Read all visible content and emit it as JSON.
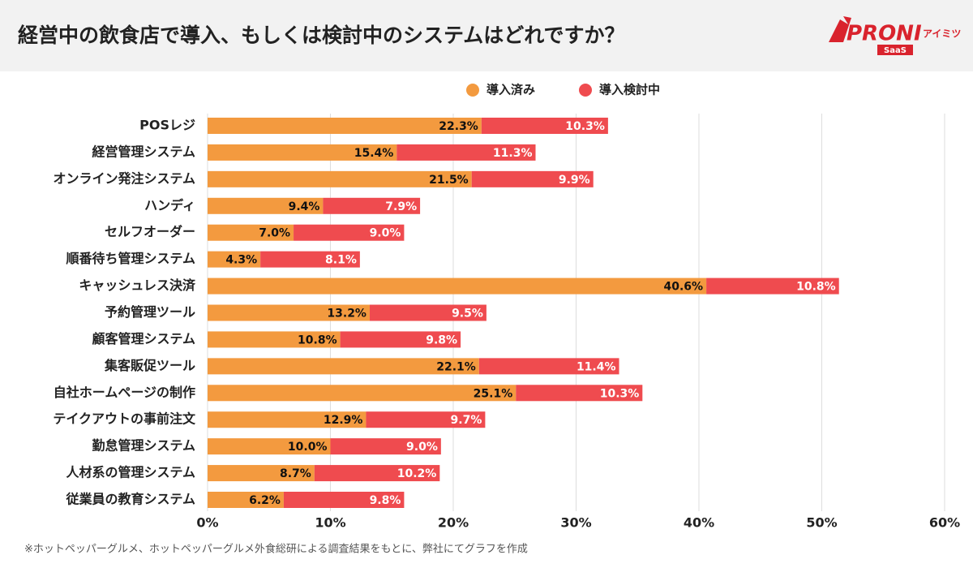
{
  "chart_data": {
    "type": "bar",
    "orientation": "horizontal",
    "stacked": true,
    "title": "経営中の飲食店で導入、もしくは検討中のシステムはどれですか？",
    "note": "※ホットペッパーグルメ、ホットペッパーグルメ外食総研による調査結果をもとに、弊社にてグラフを作成",
    "categories": [
      "POSレジ",
      "経営管理システム",
      "オンライン発注システム",
      "ハンディ",
      "セルフオーダー",
      "順番待ち管理システム",
      "キャッシュレス決済",
      "予約管理ツール",
      "顧客管理システム",
      "集客販促ツール",
      "自社ホームページの制作",
      "テイクアウトの事前注文",
      "勤怠管理システム",
      "人材系の管理システム",
      "従業員の教育システム"
    ],
    "series": [
      {
        "name": "導入済み",
        "color": "#f39a3f",
        "label_color": "#111111",
        "values": [
          22.3,
          15.4,
          21.5,
          9.4,
          7.0,
          4.3,
          40.6,
          13.2,
          10.8,
          22.1,
          25.1,
          12.9,
          10.0,
          8.7,
          6.2
        ],
        "value_labels": [
          "22.3%",
          "15.4%",
          "21.5%",
          "9.4%",
          "7.0%",
          "4.3%",
          "40.6%",
          "13.2%",
          "10.8%",
          "22.1%",
          "25.1%",
          "12.9%",
          "10.0%",
          "8.7%",
          "6.2%"
        ]
      },
      {
        "name": "導入検討中",
        "color": "#ef4b4f",
        "label_color": "#ffffff",
        "values": [
          10.3,
          11.3,
          9.9,
          7.9,
          9.0,
          8.1,
          10.8,
          9.5,
          9.8,
          11.4,
          10.3,
          9.7,
          9.0,
          10.2,
          9.8
        ],
        "value_labels": [
          "10.3%",
          "11.3%",
          "9.9%",
          "7.9%",
          "9.0%",
          "8.1%",
          "10.8%",
          "9.5%",
          "9.8%",
          "11.4%",
          "10.3%",
          "9.7%",
          "9.0%",
          "10.2%",
          "9.8%"
        ]
      }
    ],
    "xlim": [
      0,
      60
    ],
    "xticks": [
      {
        "value": 0,
        "label": "0%"
      },
      {
        "value": 10,
        "label": "10%"
      },
      {
        "value": 20,
        "label": "20%"
      },
      {
        "value": 30,
        "label": "30%"
      },
      {
        "value": 40,
        "label": "40%"
      },
      {
        "value": 50,
        "label": "50%"
      },
      {
        "value": 60,
        "label": "60%"
      }
    ],
    "grid": true,
    "legend": "top"
  },
  "logo": {
    "name": "PRONI",
    "sub": "アイミツ",
    "tag": "SaaS"
  }
}
